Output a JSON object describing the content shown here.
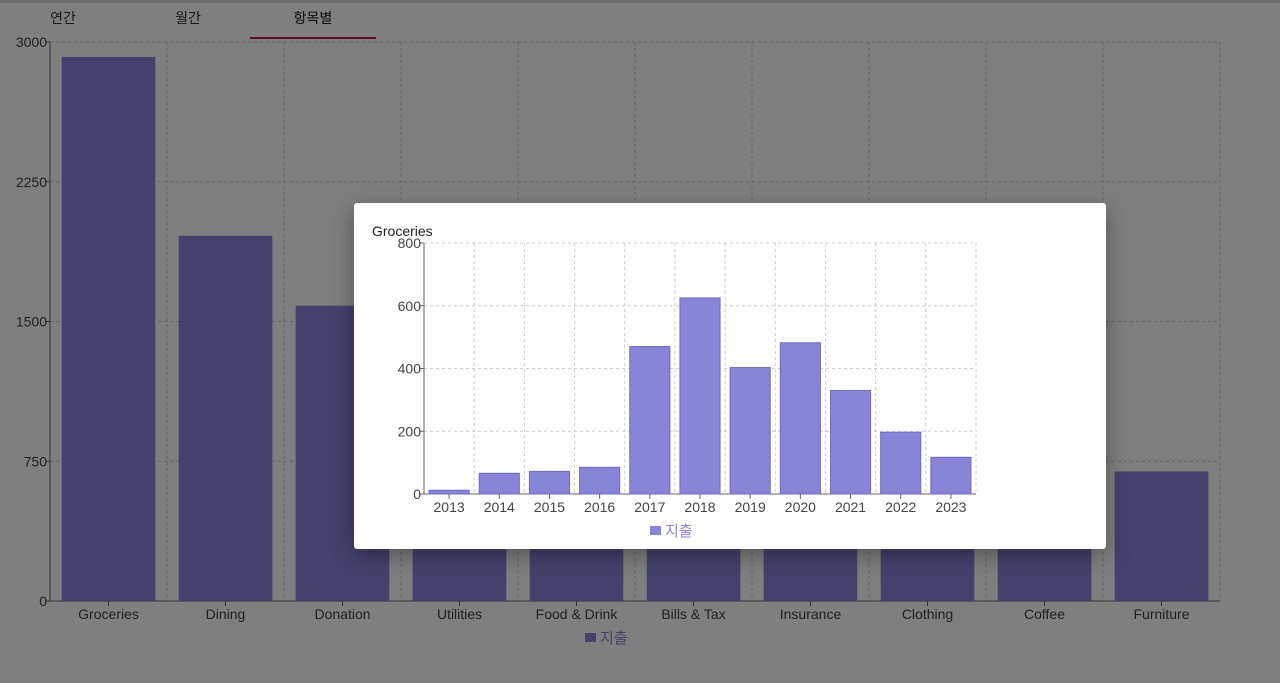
{
  "tabs": [
    {
      "label": "연간",
      "active": false
    },
    {
      "label": "월간",
      "active": false
    },
    {
      "label": "항목별",
      "active": true
    }
  ],
  "colors": {
    "main_bar": "#8884d8",
    "modal_bar": "#8884d8",
    "tab_indicator": "#c2185b",
    "overlay": "rgba(0,0,0,0.5)"
  },
  "main_legend": {
    "label": "지출"
  },
  "modal": {
    "title": "Groceries",
    "legend": {
      "label": "지출"
    }
  },
  "chart_data": [
    {
      "type": "bar",
      "categories": [
        "Groceries",
        "Dining",
        "Donation",
        "Utilities",
        "Food & Drink",
        "Bills & Tax",
        "Insurance",
        "Clothing",
        "Coffee",
        "Furniture"
      ],
      "series": [
        {
          "name": "지출",
          "values": [
            2920,
            1960,
            1585,
            1180,
            1080,
            1020,
            980,
            880,
            720,
            695
          ]
        }
      ],
      "yticks": [
        0,
        750,
        1500,
        2250,
        3000
      ],
      "ylim": [
        0,
        3000
      ],
      "grid": true,
      "legend_position": "bottom-center"
    },
    {
      "type": "bar",
      "title": "Groceries",
      "categories": [
        "2013",
        "2014",
        "2015",
        "2016",
        "2017",
        "2018",
        "2019",
        "2020",
        "2021",
        "2022",
        "2023"
      ],
      "series": [
        {
          "name": "지출",
          "values": [
            12,
            66,
            72,
            85,
            470,
            625,
            403,
            482,
            330,
            197,
            117
          ]
        }
      ],
      "yticks": [
        0,
        200,
        400,
        600,
        800
      ],
      "ylim": [
        0,
        800
      ],
      "grid": true,
      "legend_position": "bottom-center"
    }
  ]
}
